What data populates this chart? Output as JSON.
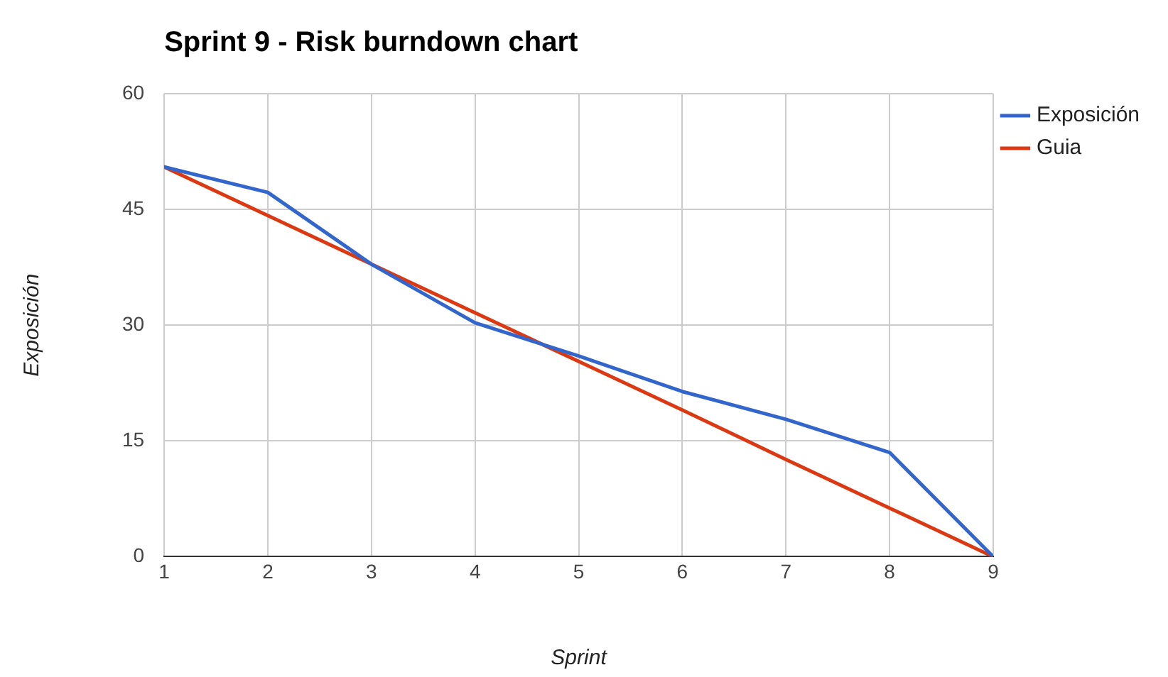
{
  "chart_data": {
    "type": "line",
    "title": "Sprint 9 - Risk burndown chart",
    "xlabel": "Sprint",
    "ylabel": "Exposición",
    "x": [
      1,
      2,
      3,
      4,
      5,
      6,
      7,
      8,
      9
    ],
    "series": [
      {
        "name": "Exposición",
        "color": "#3366cc",
        "values": [
          50.5,
          47.2,
          37.9,
          30.3,
          26.0,
          21.4,
          17.8,
          13.5,
          0
        ]
      },
      {
        "name": "Guia",
        "color": "#dc3912",
        "values": [
          50.5,
          44.2,
          37.9,
          31.6,
          25.3,
          19.0,
          12.6,
          6.3,
          0
        ]
      }
    ],
    "xlim": [
      1,
      9
    ],
    "xticks": [
      1,
      2,
      3,
      4,
      5,
      6,
      7,
      8,
      9
    ],
    "ylim": [
      0,
      60
    ],
    "yticks": [
      0,
      15,
      30,
      45,
      60
    ],
    "grid": true,
    "legend": "top right",
    "marker": "none",
    "line_style": "solid"
  }
}
